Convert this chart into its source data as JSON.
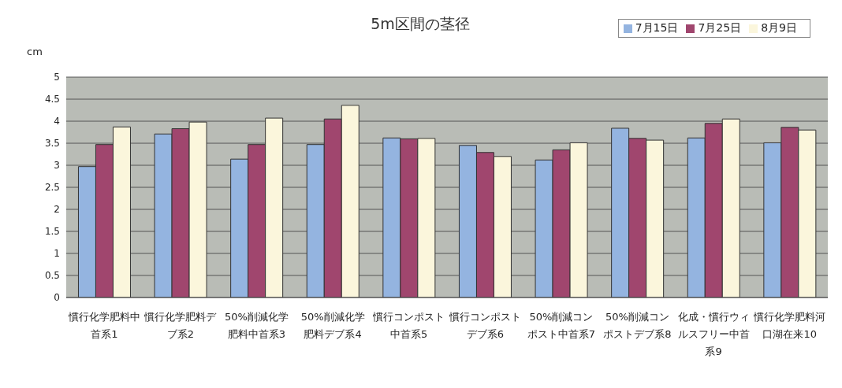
{
  "chart_data": {
    "type": "bar",
    "title": "5m区間の茎径",
    "ylabel": "cm",
    "categories": [
      "慣行化学肥料中首系1",
      "慣行化学肥料デブ系2",
      "50%削減化学肥料中首系3",
      "50%削減化学肥料デブ系4",
      "慣行コンポスト中首系5",
      "慣行コンポストデブ系6",
      "50%削減コンポスト中首系7",
      "50%削減コンポストデブ系8",
      "化成・慣行ウィルスフリー中首系9",
      "慣行化学肥料河口湖在来10"
    ],
    "series": [
      {
        "name": "7月15日",
        "color": "#94b4e0",
        "values": [
          2.97,
          3.71,
          3.14,
          3.47,
          3.62,
          3.45,
          3.12,
          3.84,
          3.62,
          3.51
        ]
      },
      {
        "name": "7月25日",
        "color": "#a0466e",
        "values": [
          3.47,
          3.83,
          3.47,
          4.05,
          3.6,
          3.29,
          3.35,
          3.61,
          3.95,
          3.86
        ]
      },
      {
        "name": "8月9日",
        "color": "#fbf6dc",
        "values": [
          3.87,
          3.98,
          4.07,
          4.36,
          3.61,
          3.2,
          3.51,
          3.57,
          4.05,
          3.8
        ]
      }
    ],
    "ylim": [
      0,
      5
    ],
    "yticks": [
      0,
      0.5,
      1,
      1.5,
      2,
      2.5,
      3,
      3.5,
      4,
      4.5,
      5
    ],
    "grid": "y",
    "legend": "top right"
  }
}
